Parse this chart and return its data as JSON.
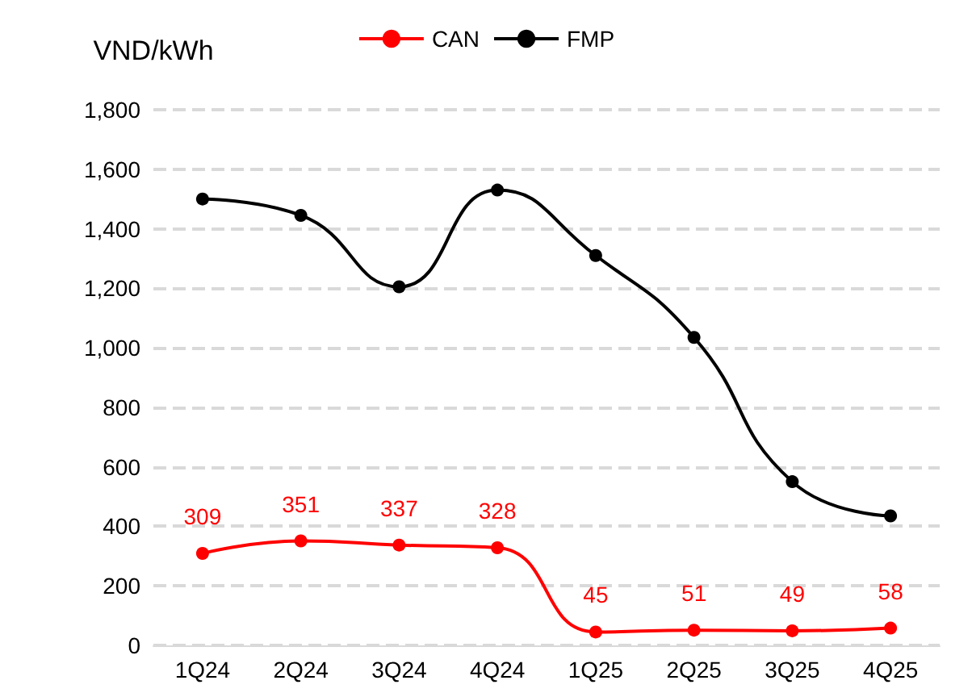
{
  "chart_data": {
    "type": "line",
    "ylabel": "VND/kWh",
    "categories": [
      "1Q24",
      "2Q24",
      "3Q24",
      "4Q24",
      "1Q25",
      "2Q25",
      "3Q25",
      "4Q25"
    ],
    "series": [
      {
        "name": "CAN",
        "color": "#ff0000",
        "values": [
          309,
          351,
          337,
          328,
          45,
          51,
          49,
          58
        ],
        "value_labels": [
          "309",
          "351",
          "337",
          "328",
          "45",
          "51",
          "49",
          "58"
        ]
      },
      {
        "name": "FMP",
        "color": "#000000",
        "values": [
          1500,
          1445,
          1205,
          1530,
          1310,
          1035,
          550,
          435
        ]
      }
    ],
    "ylim": [
      0,
      1800
    ],
    "yticks": [
      {
        "value": 0,
        "label": "0"
      },
      {
        "value": 200,
        "label": "200"
      },
      {
        "value": 400,
        "label": "400"
      },
      {
        "value": 600,
        "label": "600"
      },
      {
        "value": 800,
        "label": "800"
      },
      {
        "value": 1000,
        "label": "1,000"
      },
      {
        "value": 1200,
        "label": "1,200"
      },
      {
        "value": 1400,
        "label": "1,400"
      },
      {
        "value": 1600,
        "label": "1,600"
      },
      {
        "value": 1800,
        "label": "1,800"
      }
    ],
    "grid": "y",
    "legend": "top",
    "marker": "circle",
    "line_style": "solid"
  }
}
